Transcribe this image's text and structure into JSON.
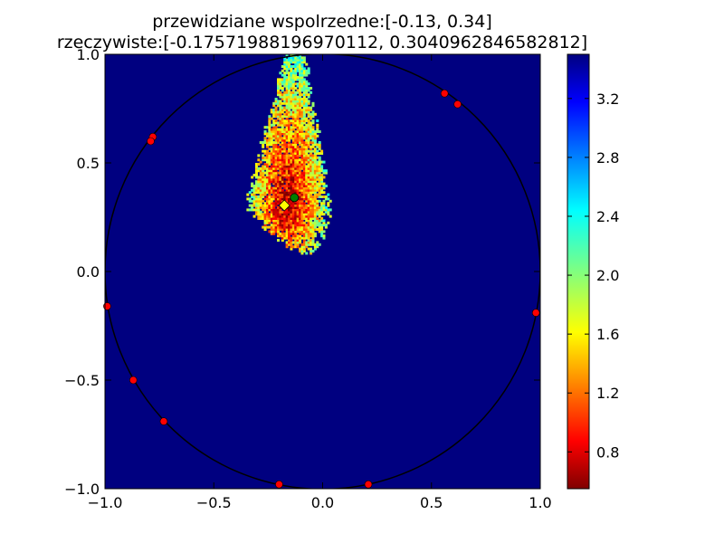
{
  "chart_data": {
    "type": "heatmap",
    "title_line1": "przewidziane wspolrzedne:[-0.13, 0.34]",
    "title_line2": "rzeczywiste:[-0.17571988196970112, 0.3040962846582812]",
    "xlabel": "",
    "ylabel": "",
    "xlim": [
      -1.0,
      1.0
    ],
    "ylim": [
      -1.0,
      1.0
    ],
    "x_ticks": [
      "−1.0",
      "−0.5",
      "0.0",
      "0.5",
      "1.0"
    ],
    "y_ticks": [
      "−1.0",
      "−0.5",
      "0.0",
      "0.5",
      "1.0"
    ],
    "x_tick_values": [
      -1.0,
      -0.5,
      0.0,
      0.5,
      1.0
    ],
    "y_tick_values": [
      -1.0,
      -0.5,
      0.0,
      0.5,
      1.0
    ],
    "grid": false,
    "colormap": "jet",
    "colorbar": {
      "range": [
        0.55,
        3.5
      ],
      "tick_values": [
        0.8,
        1.2,
        1.6,
        2.0,
        2.4,
        2.8,
        3.2
      ],
      "tick_labels": [
        "0.8",
        "1.2",
        "1.6",
        "2.0",
        "2.4",
        "2.8",
        "3.2"
      ]
    },
    "background_value": 3.5,
    "circle": {
      "center": [
        0.0,
        0.0
      ],
      "radius": 1.0,
      "color": "#000000"
    },
    "sensor_points": [
      {
        "x": 0.56,
        "y": 0.82
      },
      {
        "x": 0.62,
        "y": 0.77
      },
      {
        "x": -0.78,
        "y": 0.62
      },
      {
        "x": -0.79,
        "y": 0.6
      },
      {
        "x": -0.99,
        "y": -0.16
      },
      {
        "x": 0.98,
        "y": -0.19
      },
      {
        "x": -0.87,
        "y": -0.5
      },
      {
        "x": -0.73,
        "y": -0.69
      },
      {
        "x": -0.2,
        "y": -0.98
      },
      {
        "x": 0.21,
        "y": -0.98
      }
    ],
    "sensor_color": "#ff0000",
    "predicted_point": {
      "x": -0.13,
      "y": 0.34,
      "marker": "circle",
      "color": "#008000"
    },
    "actual_point": {
      "x": -0.17571988196970112,
      "y": 0.3040962846582812,
      "marker": "diamond",
      "color": "#ffff00"
    },
    "heat_region": {
      "center": [
        -0.16,
        0.3
      ],
      "min_value": 0.6,
      "plume_top": 1.0,
      "note_value": "values decrease toward the center of the plume"
    }
  }
}
